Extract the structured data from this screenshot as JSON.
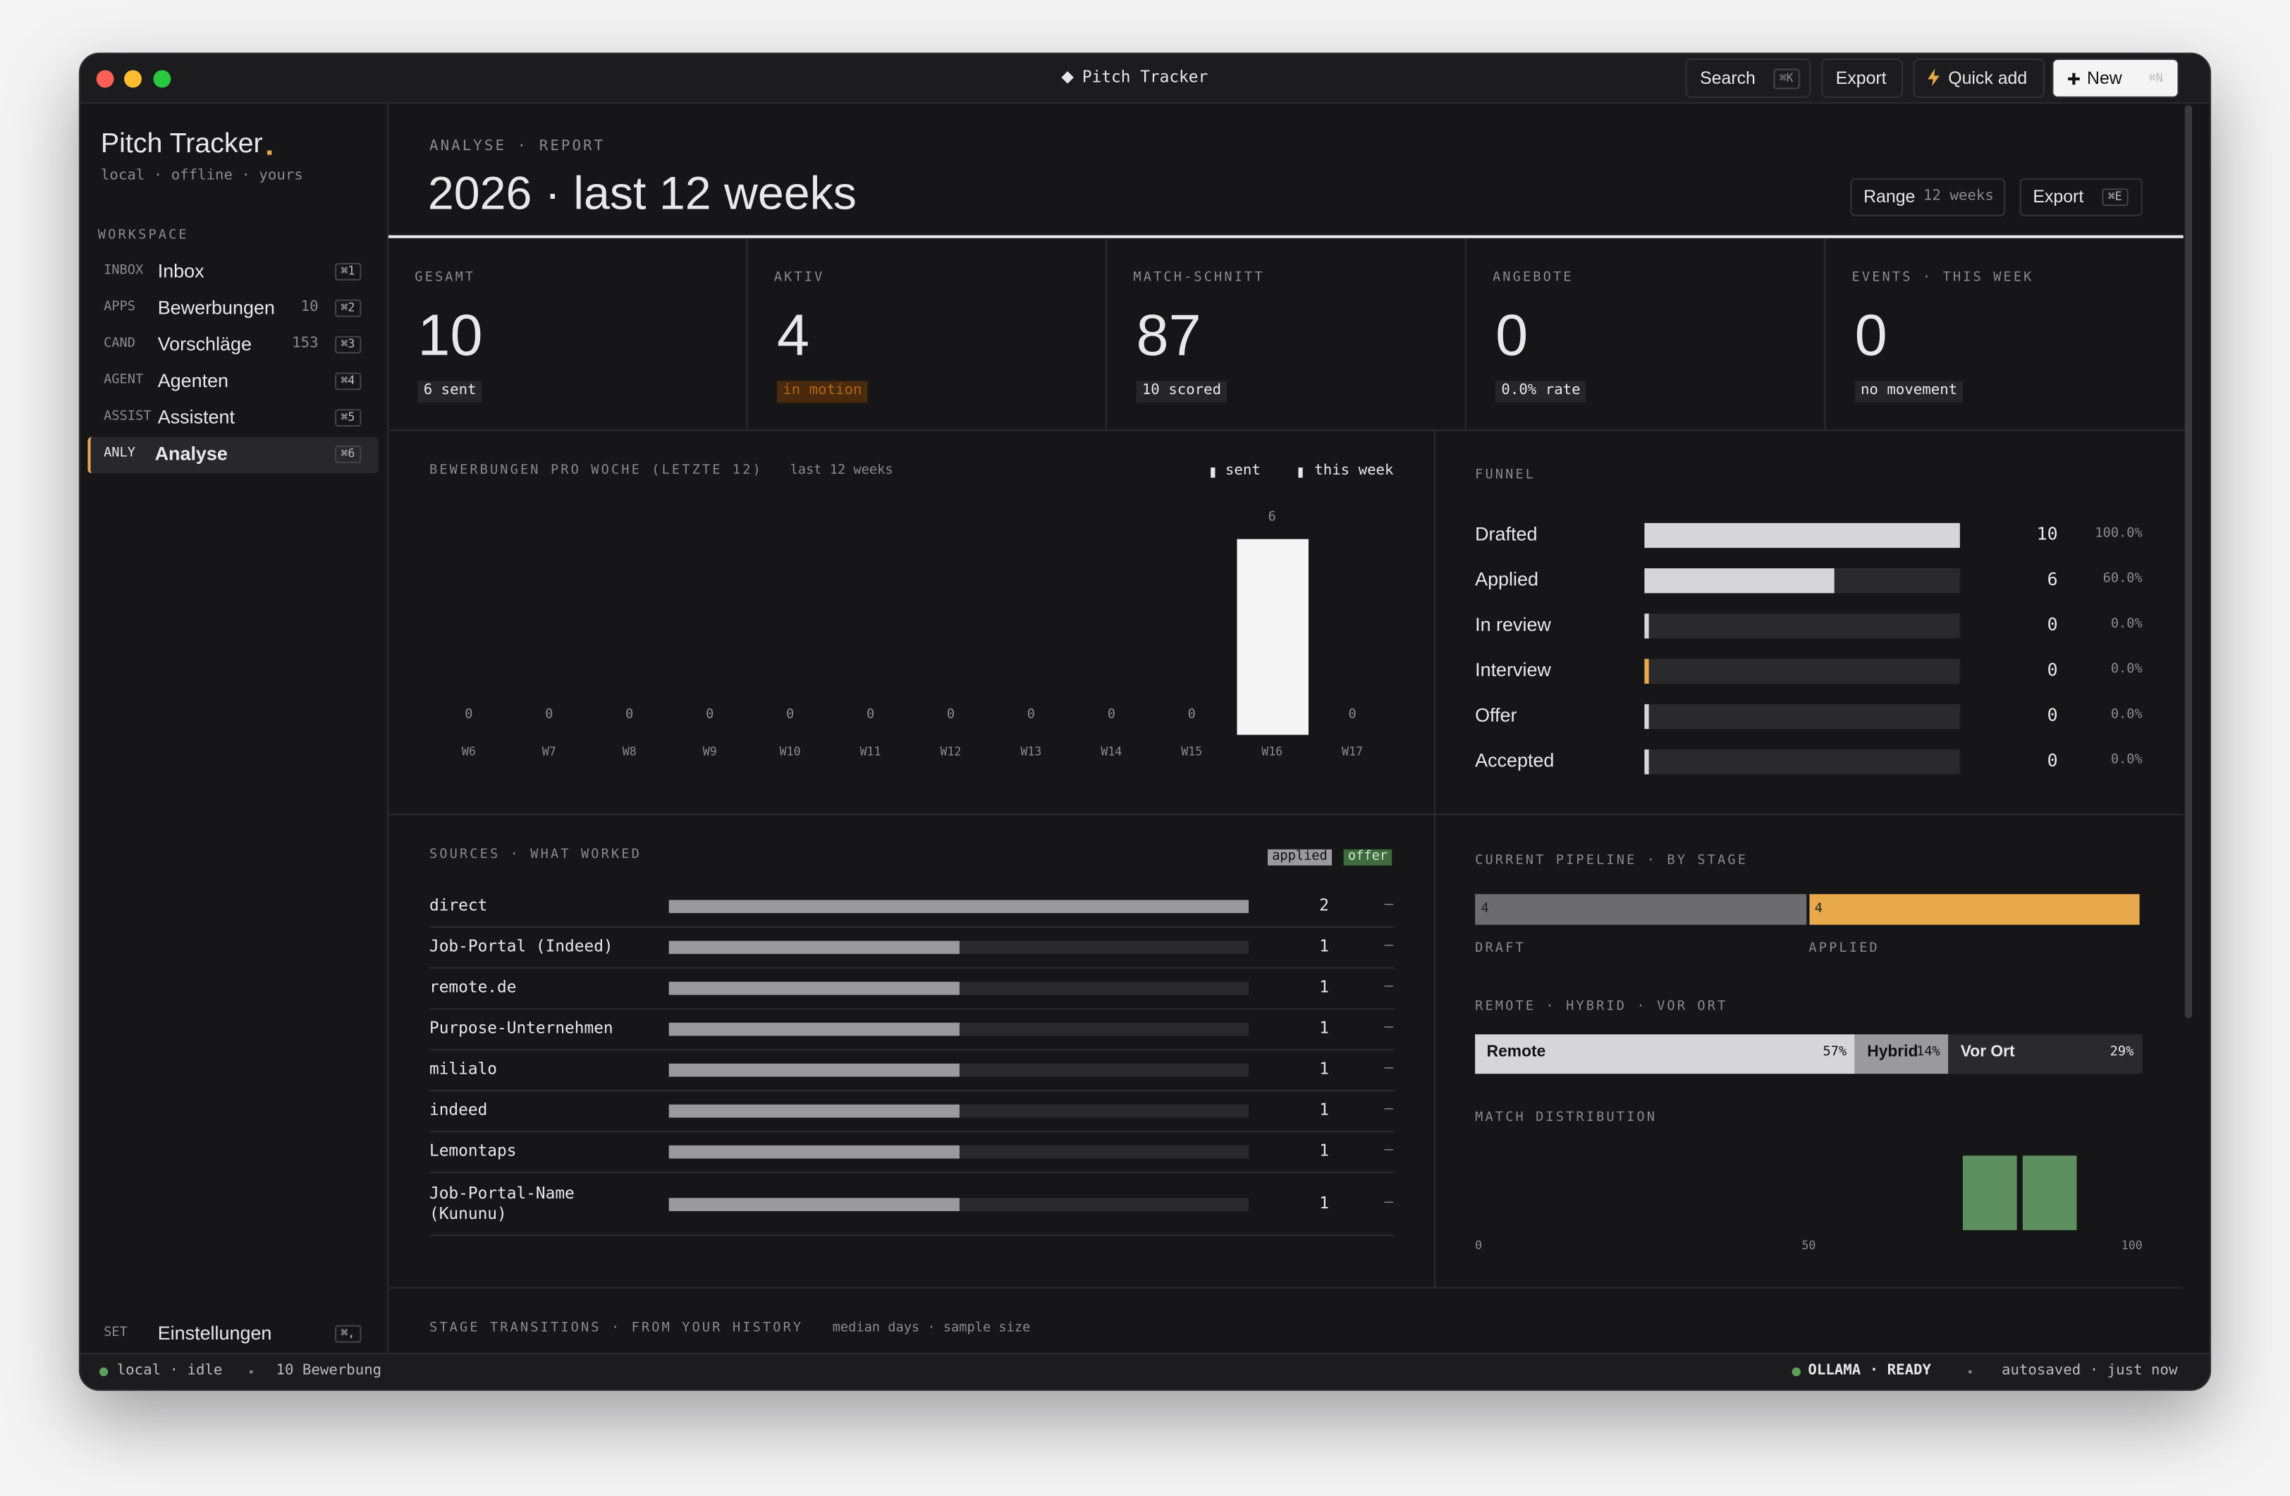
{
  "window": {
    "title": "Pitch Tracker",
    "toolbar": [
      {
        "label": "Search",
        "key": "⌘K"
      },
      {
        "label": "Export"
      },
      {
        "label": "Quick add"
      },
      {
        "label": "New",
        "key": "⌘N"
      }
    ]
  },
  "sidebar": {
    "brand": "Pitch Tracker",
    "tagline": "local · offline · yours",
    "section": "WORKSPACE",
    "items": [
      {
        "tag": "INBOX",
        "label": "Inbox",
        "key": "⌘1"
      },
      {
        "tag": "APPS",
        "label": "Bewerbungen",
        "count": 10,
        "key": "⌘2"
      },
      {
        "tag": "CAND",
        "label": "Vorschläge",
        "count": 153,
        "key": "⌘3"
      },
      {
        "tag": "AGENT",
        "label": "Agenten",
        "key": "⌘4"
      },
      {
        "tag": "ASSIST",
        "label": "Assistent",
        "key": "⌘5"
      },
      {
        "tag": "ANLY",
        "label": "Analyse",
        "key": "⌘6",
        "active": true
      }
    ],
    "settings": {
      "tag": "SET",
      "label": "Einstellungen",
      "key": "⌘,"
    }
  },
  "header": {
    "eyebrow": "ANALYSE · REPORT",
    "title": "2026 · last 12 weeks",
    "range": {
      "label": "Range",
      "value": "12 weeks"
    },
    "export": {
      "label": "Export",
      "key": "⌘E"
    }
  },
  "stats": [
    {
      "label": "GESAMT",
      "value": 10,
      "note": "6 sent"
    },
    {
      "label": "AKTIV",
      "value": 4,
      "note": "in motion"
    },
    {
      "label": "MATCH-SCHNITT",
      "value": 87,
      "note": "10 scored"
    },
    {
      "label": "ANGEBOTE",
      "value": 0,
      "note": "0.0% rate"
    },
    {
      "label": "EVENTS · THIS WEEK",
      "value": 0,
      "note": "no movement"
    }
  ],
  "weekly": {
    "title": "BEWERBUNGEN PRO WOCHE (LETZTE 12)",
    "subtitle": "last 12 weeks",
    "legend": [
      "sent",
      "this week"
    ],
    "categories": [
      "W6",
      "W7",
      "W8",
      "W9",
      "W10",
      "W11",
      "W12",
      "W13",
      "W14",
      "W15",
      "W16",
      "W17"
    ],
    "values": [
      0,
      0,
      0,
      0,
      0,
      0,
      0,
      0,
      0,
      0,
      6,
      0
    ]
  },
  "funnel": {
    "title": "FUNNEL",
    "stages": [
      {
        "name": "Drafted",
        "value": 10,
        "pct": "100.0%"
      },
      {
        "name": "Applied",
        "value": 6,
        "pct": "60.0%"
      },
      {
        "name": "In review",
        "value": 0,
        "pct": "0.0%"
      },
      {
        "name": "Interview",
        "value": 0,
        "pct": "0.0%"
      },
      {
        "name": "Offer",
        "value": 0,
        "pct": "0.0%"
      },
      {
        "name": "Accepted",
        "value": 0,
        "pct": "0.0%"
      }
    ]
  },
  "sources": {
    "title": "SOURCES · WHAT WORKED",
    "legend": [
      "applied",
      "offer"
    ],
    "rows": [
      {
        "name": "direct",
        "applied": 2,
        "offer": "—"
      },
      {
        "name": "Job-Portal (Indeed)",
        "applied": 1,
        "offer": "—"
      },
      {
        "name": "remote.de",
        "applied": 1,
        "offer": "—"
      },
      {
        "name": "Purpose-Unternehmen",
        "applied": 1,
        "offer": "—"
      },
      {
        "name": "milialo",
        "applied": 1,
        "offer": "—"
      },
      {
        "name": "indeed",
        "applied": 1,
        "offer": "—"
      },
      {
        "name": "Lemontaps",
        "applied": 1,
        "offer": "—"
      },
      {
        "name": "Job-Portal-Name (Kununu)",
        "applied": 1,
        "offer": "—"
      }
    ]
  },
  "pipeline": {
    "title": "CURRENT PIPELINE · BY STAGE",
    "segments": [
      {
        "label": "DRAFT",
        "value": 4
      },
      {
        "label": "APPLIED",
        "value": 4
      }
    ]
  },
  "mode": {
    "title": "REMOTE · HYBRID · VOR ORT",
    "parts": [
      {
        "name": "Remote",
        "value": 57,
        "label": "57%"
      },
      {
        "name": "Hybrid",
        "value": 14,
        "label": "14%"
      },
      {
        "name": "Vor Ort",
        "value": 29,
        "label": "29%"
      }
    ]
  },
  "match": {
    "title": "MATCH DISTRIBUTION",
    "xlim": [
      0,
      100
    ],
    "xticks": [
      0,
      50,
      100
    ],
    "bins": [
      73,
      82,
      91
    ],
    "counts": [
      1,
      1
    ]
  },
  "transitions": {
    "title": "STAGE TRANSITIONS · FROM YOUR HISTORY",
    "subtitle": "median days · sample size"
  },
  "status": {
    "left": [
      "local · idle",
      "10 Bewerbung"
    ],
    "right": [
      "OLLAMA · READY",
      "autosaved · just now"
    ]
  }
}
